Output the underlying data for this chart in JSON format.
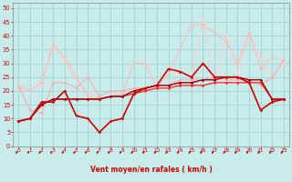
{
  "xlabel": "Vent moyen/en rafales ( km/h )",
  "x": [
    0,
    1,
    2,
    3,
    4,
    5,
    6,
    7,
    8,
    9,
    10,
    11,
    12,
    13,
    14,
    15,
    16,
    17,
    18,
    19,
    20,
    21,
    22,
    23
  ],
  "lines": [
    {
      "y": [
        22,
        13,
        12,
        23,
        23,
        21,
        25,
        18,
        20,
        20,
        21,
        21,
        22,
        22,
        24,
        24,
        24,
        25,
        24,
        24,
        24,
        22,
        25,
        31
      ],
      "color": "#ffaaaa",
      "lw": 0.8,
      "marker": "D",
      "ms": 1.8,
      "zorder": 3
    },
    {
      "y": [
        22,
        20,
        23,
        37,
        32,
        25,
        18,
        17,
        18,
        19,
        30,
        30,
        21,
        26,
        35,
        44,
        44,
        41,
        38,
        30,
        41,
        28,
        32,
        31
      ],
      "color": "#ffbbbb",
      "lw": 0.8,
      "marker": "D",
      "ms": 1.8,
      "zorder": 3
    },
    {
      "y": [
        21,
        20,
        22,
        36,
        31,
        24,
        20,
        17,
        18,
        19,
        21,
        21,
        22,
        22,
        27,
        25,
        46,
        24,
        40,
        27,
        41,
        32,
        25,
        30
      ],
      "color": "#ffcccc",
      "lw": 0.8,
      "marker": "D",
      "ms": 1.8,
      "zorder": 2
    },
    {
      "y": [
        9,
        10,
        16,
        16,
        20,
        11,
        10,
        5,
        9,
        10,
        19,
        21,
        22,
        28,
        27,
        25,
        30,
        25,
        25,
        25,
        23,
        13,
        16,
        17
      ],
      "color": "#cc0000",
      "lw": 1.2,
      "marker": "D",
      "ms": 1.8,
      "zorder": 5
    },
    {
      "y": [
        9,
        10,
        15,
        17,
        17,
        17,
        17,
        17,
        18,
        18,
        19,
        20,
        21,
        21,
        22,
        22,
        22,
        23,
        23,
        23,
        23,
        23,
        17,
        17
      ],
      "color": "#ff3333",
      "lw": 1.0,
      "marker": "D",
      "ms": 1.8,
      "zorder": 4
    },
    {
      "y": [
        9,
        10,
        15,
        17,
        17,
        17,
        17,
        17,
        18,
        18,
        20,
        21,
        22,
        22,
        23,
        23,
        24,
        24,
        25,
        25,
        24,
        24,
        17,
        17
      ],
      "color": "#990000",
      "lw": 1.0,
      "marker": "D",
      "ms": 1.8,
      "zorder": 4
    }
  ],
  "ylim": [
    0,
    52
  ],
  "xlim": [
    -0.5,
    23.5
  ],
  "yticks": [
    0,
    5,
    10,
    15,
    20,
    25,
    30,
    35,
    40,
    45,
    50
  ],
  "xticks": [
    0,
    1,
    2,
    3,
    4,
    5,
    6,
    7,
    8,
    9,
    10,
    11,
    12,
    13,
    14,
    15,
    16,
    17,
    18,
    19,
    20,
    21,
    22,
    23
  ],
  "bg_color": "#c8ecec",
  "grid_color": "#a0d4d4",
  "tick_color": "#cc0000",
  "label_color": "#cc0000",
  "spine_color": "#888888",
  "xlabel_fontsize": 5.5,
  "ytick_fontsize": 4.8,
  "xtick_fontsize": 4.2
}
